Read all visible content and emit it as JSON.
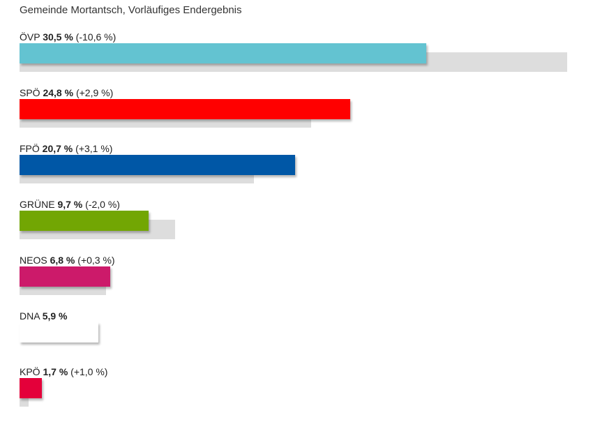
{
  "chart_data": {
    "type": "bar",
    "orientation": "horizontal",
    "title": "Gemeinde Mortantsch, Vorläufiges Endergebnis",
    "unit": "%",
    "xlim": [
      0,
      41.1
    ],
    "grid": false,
    "categories": [
      "ÖVP",
      "SPÖ",
      "FPÖ",
      "GRÜNE",
      "NEOS",
      "DNA",
      "KPÖ"
    ],
    "series": [
      {
        "name": "current",
        "values": [
          30.5,
          24.8,
          20.7,
          9.7,
          6.8,
          5.9,
          1.7
        ],
        "value_labels": [
          "30,5 %",
          "24,8 %",
          "20,7 %",
          "9,7 %",
          "6,8 %",
          "5,9 %",
          "1,7 %"
        ]
      },
      {
        "name": "previous",
        "values": [
          41.1,
          21.9,
          17.6,
          11.7,
          6.5,
          null,
          0.7
        ]
      }
    ],
    "change_labels": [
      "(-10,6 %)",
      "(+2,9 %)",
      "(+3,1 %)",
      "(-2,0 %)",
      "(+0,3 %)",
      "",
      "(+1,0 %)"
    ],
    "colors": [
      "#63c3d1",
      "#ff0000",
      "#0057a6",
      "#72a603",
      "#cc1a6a",
      "#ffffff",
      "#e4003a"
    ],
    "previous_color": "#dddddd"
  }
}
